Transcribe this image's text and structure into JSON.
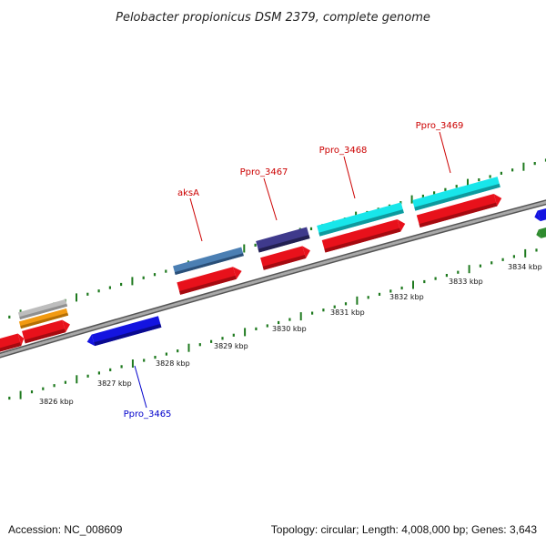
{
  "title": "Pelobacter propionicus DSM 2379, complete genome",
  "footer": {
    "accession": "Accession: NC_008609",
    "summary": "Topology: circular; Length: 4,008,000 bp; Genes: 3,643"
  },
  "colors": {
    "backbone": "#8a8a8a",
    "tick": "#1f7a1f",
    "label_forward": "#cc0000",
    "label_reverse": "#0000cc"
  },
  "scale_labels": [
    "3826 kbp",
    "3827 kbp",
    "3828 kbp",
    "3829 kbp",
    "3830 kbp",
    "3831 kbp",
    "3832 kbp",
    "3833 kbp",
    "3834 kbp"
  ],
  "gene_labels": [
    {
      "text": "aksA",
      "strand": "forward"
    },
    {
      "text": "Ppro_3467",
      "strand": "forward"
    },
    {
      "text": "Ppro_3468",
      "strand": "forward"
    },
    {
      "text": "Ppro_3469",
      "strand": "forward"
    },
    {
      "text": "Ppro_3465",
      "strand": "reverse"
    }
  ],
  "features": [
    {
      "name": "gene-left-edge",
      "color": "#e8111b",
      "strand": "forward"
    },
    {
      "name": "gene-grey",
      "color": "#bdbdbd",
      "strand": "forward"
    },
    {
      "name": "gene-orange",
      "color": "#f29a12",
      "strand": "forward"
    },
    {
      "name": "gene-red-1",
      "color": "#e8111b",
      "strand": "forward"
    },
    {
      "name": "gene-ppro-3465",
      "color": "#1414e0",
      "strand": "reverse"
    },
    {
      "name": "gene-aksa",
      "color": "#4b7fb3",
      "strand": "forward"
    },
    {
      "name": "gene-aksa-red",
      "color": "#e8111b",
      "strand": "forward"
    },
    {
      "name": "gene-ppro-3467",
      "color": "#3f3a8c",
      "strand": "forward"
    },
    {
      "name": "gene-ppro-3467-red",
      "color": "#e8111b",
      "strand": "forward"
    },
    {
      "name": "gene-ppro-3468",
      "color": "#18e6ea",
      "strand": "forward"
    },
    {
      "name": "gene-ppro-3468-red",
      "color": "#e8111b",
      "strand": "forward"
    },
    {
      "name": "gene-ppro-3469",
      "color": "#18e6ea",
      "strand": "forward"
    },
    {
      "name": "gene-ppro-3469-red",
      "color": "#e8111b",
      "strand": "forward"
    },
    {
      "name": "gene-right-blue",
      "color": "#1414e0",
      "strand": "reverse"
    },
    {
      "name": "gene-right-green",
      "color": "#2e8b2e",
      "strand": "reverse"
    }
  ]
}
